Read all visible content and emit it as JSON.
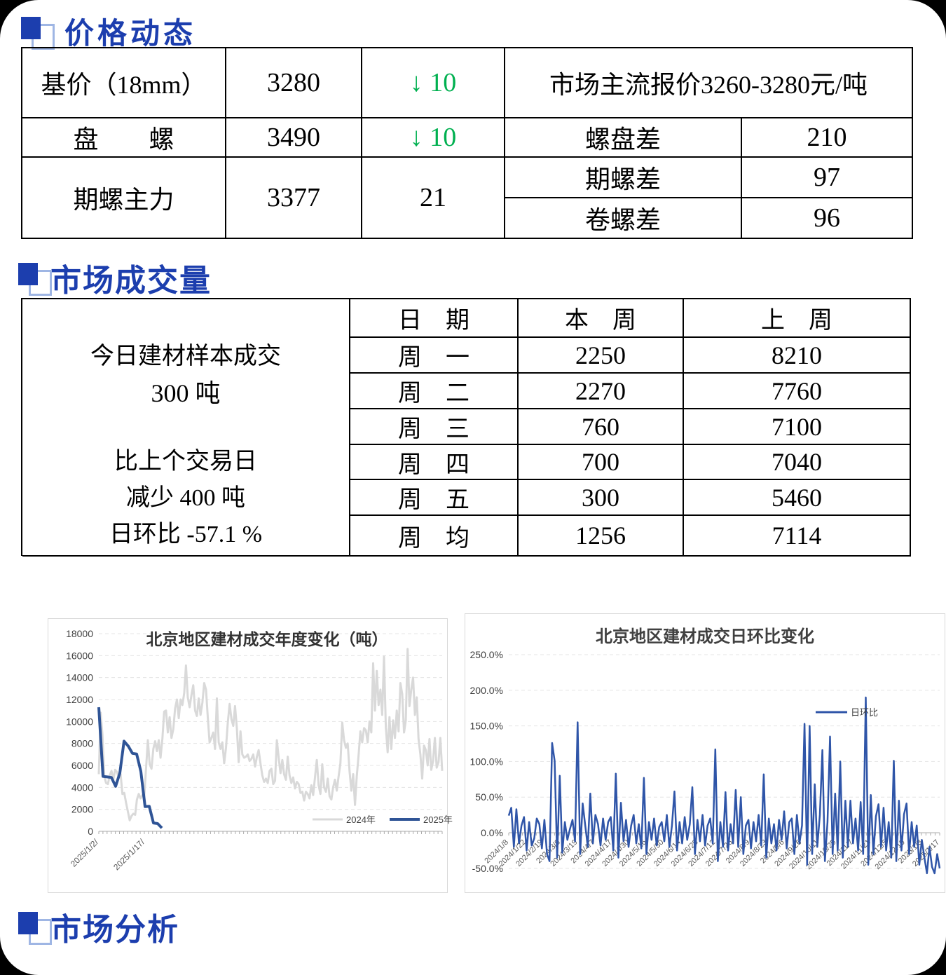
{
  "sections": {
    "price": {
      "title": "价格动态",
      "rows": [
        {
          "label": "基价（18mm）",
          "value": "3280",
          "change": "↓ 10"
        },
        {
          "label": "盘　　螺",
          "value": "3490",
          "change": "↓ 10"
        },
        {
          "label": "期螺主力",
          "value": "3377",
          "change": "21"
        }
      ],
      "quote": "市场主流报价3260-3280元/吨",
      "diffs": [
        {
          "label": "螺盘差",
          "value": "210"
        },
        {
          "label": "期螺差",
          "value": "97"
        },
        {
          "label": "卷螺差",
          "value": "96"
        }
      ]
    },
    "volume": {
      "title": "市场成交量",
      "summary": [
        "今日建材样本成交",
        "300 吨",
        "比上个交易日",
        "减少 400 吨",
        "日环比 -57.1 %"
      ],
      "table": {
        "headers": [
          "日　期",
          "本　周",
          "上　周"
        ],
        "rows": [
          [
            "周　一",
            "2250",
            "8210"
          ],
          [
            "周　二",
            "2270",
            "7760"
          ],
          [
            "周　三",
            "760",
            "7100"
          ],
          [
            "周　四",
            "700",
            "7040"
          ],
          [
            "周　五",
            "300",
            "5460"
          ],
          [
            "周　均",
            "1256",
            "7114"
          ]
        ]
      }
    },
    "analysis": {
      "title": "市场分析"
    }
  },
  "chart_data": [
    {
      "type": "line",
      "title": "北京地区建材成交年度变化（吨）",
      "ylabel": "吨",
      "ylim": [
        0,
        18000
      ],
      "ytick_step": 2000,
      "grid": "dashed-horizontal",
      "legend_position": "bottom-right-inside",
      "x_axis_labels_visible": [
        "2025/1/2/",
        "2025/1/17/"
      ],
      "series": [
        {
          "name": "2024年",
          "color": "#D9D9D9",
          "width": 3,
          "values": [
            5200,
            10800,
            8800,
            5000,
            4400,
            4300,
            5100,
            5500,
            4700,
            5600,
            5400,
            4900,
            5200,
            3400,
            3500,
            2600,
            1800,
            1000,
            1400,
            1600,
            1500,
            2900,
            3400,
            3000,
            3300,
            3100,
            5700,
            8300,
            6100,
            5700,
            7500,
            8200,
            7300,
            8300,
            6700,
            8400,
            10900,
            11000,
            9000,
            10400,
            8500,
            9300,
            11200,
            12000,
            10300,
            12000,
            11500,
            12600,
            15100,
            12200,
            11300,
            12400,
            13300,
            11000,
            10500,
            12100,
            10600,
            11700,
            13500,
            12900,
            10300,
            8100,
            8500,
            9000,
            7500,
            12100,
            8100,
            7500,
            8100,
            6200,
            7600,
            9900,
            11600,
            10200,
            9600,
            11400,
            9400,
            6300,
            9100,
            7000,
            6700,
            6800,
            7000,
            6400,
            6600,
            7000,
            5900,
            6800,
            7400,
            6200,
            5100,
            4500,
            4800,
            4400,
            5500,
            5700,
            4300,
            4600,
            8300,
            6700,
            5300,
            6500,
            5200,
            4700,
            6800,
            5100,
            4400,
            4900,
            3900,
            4500,
            4300,
            3500,
            3600,
            2800,
            3600,
            3400,
            3000,
            4200,
            3300,
            4900,
            6500,
            4200,
            3400,
            6100,
            4000,
            3600,
            4800,
            3200,
            2900,
            4000,
            4700,
            3700,
            5000,
            6200,
            9900,
            8300,
            7600,
            8000,
            5500,
            3700,
            5200,
            2400,
            5000,
            6900,
            9100,
            8100,
            9400,
            9200,
            8100,
            10000,
            9000,
            15300,
            11000,
            14600,
            11500,
            12900,
            10600,
            15900,
            9500,
            7200,
            10400,
            7500,
            10100,
            8500,
            11000,
            9100,
            13500,
            12500,
            9000,
            10100,
            16600,
            11400,
            12900,
            14000,
            10600,
            12200,
            8400,
            7000,
            4800,
            7800,
            7400,
            6000,
            8400,
            5600,
            6400,
            8500,
            5800,
            6300,
            8500,
            5500
          ]
        },
        {
          "name": "2025年",
          "color": "#2F5496",
          "width": 4,
          "values": [
            11300,
            5000,
            4950,
            4900,
            4100,
            5300,
            8210,
            7760,
            7100,
            7040,
            5460,
            2250,
            2270,
            760,
            700,
            300
          ]
        }
      ]
    },
    {
      "type": "line",
      "title": "北京地区建材成交日环比变化",
      "ylim": [
        -50,
        250
      ],
      "ytick_step": 50,
      "ytick_labels": [
        "250.0%",
        "200.0%",
        "150.0%",
        "100.0%",
        "50.0%",
        "0.0%",
        "-50.0%"
      ],
      "ytick_values": [
        250,
        200,
        150,
        100,
        50,
        0,
        -50
      ],
      "grid": "dashed-horizontal",
      "legend_position": "top-right-inside",
      "x_labels": [
        "2024/1/8",
        "2024/1/22",
        "2024/2/19",
        "2024/3/6",
        "2024/3/19",
        "2024/4/7",
        "2024/4/17",
        "2024/4/30",
        "2024/5/16",
        "2024/5/30",
        "2024/6/14",
        "2024/6/28",
        "2024/7/12",
        "2024/7/26",
        "2024/8/9",
        "2024/8/23",
        "2024/9/6",
        "2024/9/26",
        "2024/10/11",
        "2024/10/25",
        "2024/11/7",
        "2024/11/21",
        "2024/12/5",
        "2024/12/19",
        "2025/1/3",
        "2025/1/17"
      ],
      "series": [
        {
          "name": "日环比",
          "color": "#2F55A8",
          "width": 2.5,
          "values": [
            24,
            35,
            -20,
            33,
            -15,
            10,
            22,
            -25,
            15,
            -18,
            -8,
            20,
            12,
            -22,
            18,
            -30,
            -40,
            126,
            101,
            -35,
            80,
            -28,
            15,
            -10,
            5,
            18,
            -12,
            155,
            -30,
            41,
            10,
            -20,
            55,
            -15,
            25,
            12,
            -18,
            20,
            -10,
            15,
            22,
            -25,
            83,
            -35,
            42,
            -12,
            18,
            -20,
            10,
            25,
            -15,
            12,
            -22,
            77,
            -30,
            15,
            -10,
            20,
            -18,
            8,
            15,
            -12,
            25,
            -20,
            10,
            58,
            -25,
            15,
            -15,
            22,
            -10,
            12,
            64,
            -30,
            18,
            -12,
            25,
            -18,
            10,
            20,
            -15,
            117,
            -40,
            15,
            -20,
            57,
            -25,
            12,
            -15,
            60,
            -20,
            50,
            -30,
            10,
            18,
            -22,
            15,
            -12,
            25,
            -18,
            82,
            -35,
            20,
            -15,
            12,
            -25,
            18,
            -10,
            30,
            -22,
            15,
            20,
            -30,
            25,
            -15,
            10,
            153,
            -45,
            150,
            -30,
            68,
            -20,
            25,
            116,
            -40,
            15,
            135,
            -30,
            55,
            -25,
            100,
            -35,
            45,
            -20,
            45,
            -15,
            20,
            -25,
            43,
            -30,
            190,
            -45,
            53,
            -30,
            23,
            40,
            -20,
            35,
            -25,
            15,
            -35,
            101,
            -40,
            45,
            -25,
            26,
            41,
            -30,
            15,
            -20,
            10,
            -45,
            -10,
            -35,
            -57,
            -20,
            -48,
            -57,
            -30,
            -50
          ]
        }
      ]
    }
  ]
}
